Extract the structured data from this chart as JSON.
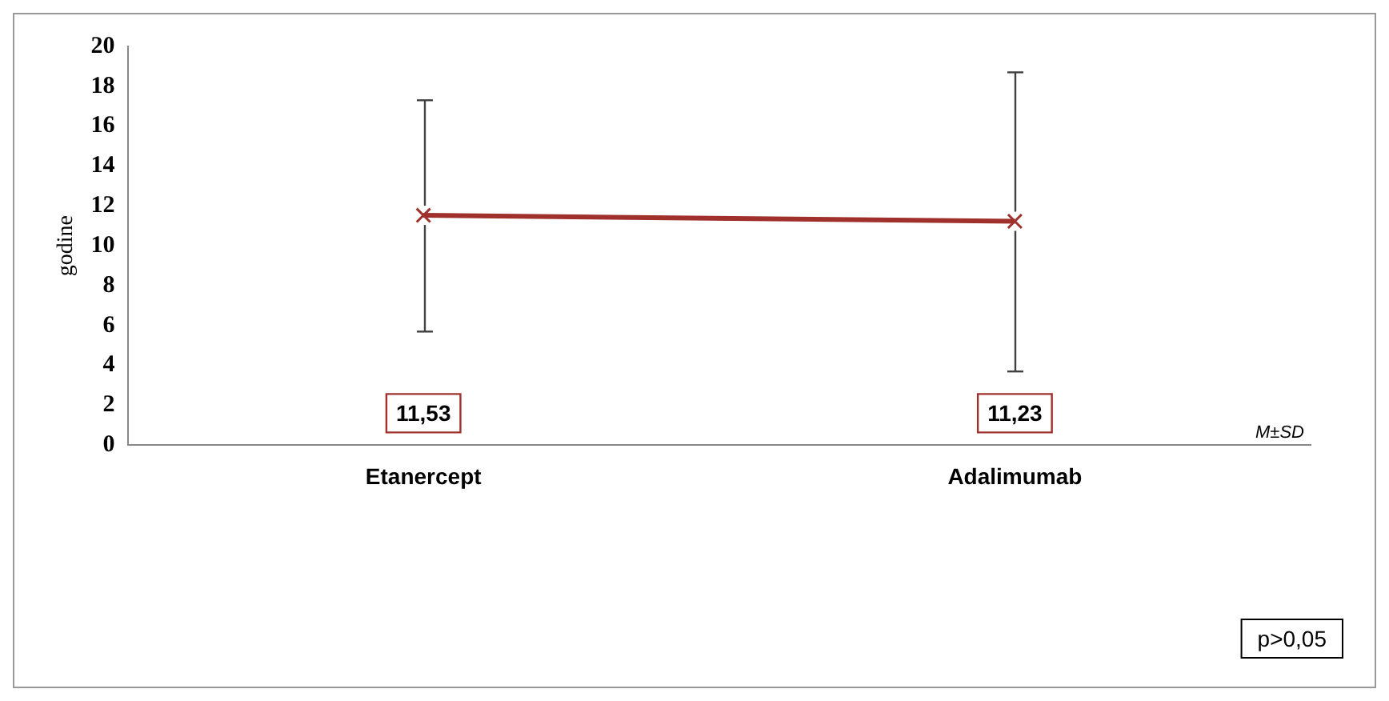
{
  "chart_data": {
    "type": "line",
    "ylabel": "godine",
    "categories": [
      "Etanercept",
      "Adalimumab"
    ],
    "series": [
      {
        "color": "#a0302c",
        "values": [
          11.53,
          11.23
        ],
        "errors": [
          [
            5.7,
            17.3
          ],
          [
            3.7,
            18.7
          ]
        ]
      }
    ],
    "ylim": [
      0,
      20
    ],
    "yticks": [
      0,
      2,
      4,
      6,
      8,
      10,
      12,
      14,
      16,
      18,
      20
    ],
    "grid": false,
    "legend": false,
    "marker": "cross",
    "line_style": "solid",
    "annotations": [
      "11,53",
      "11,23",
      "M±SD",
      "p>0,05"
    ]
  }
}
